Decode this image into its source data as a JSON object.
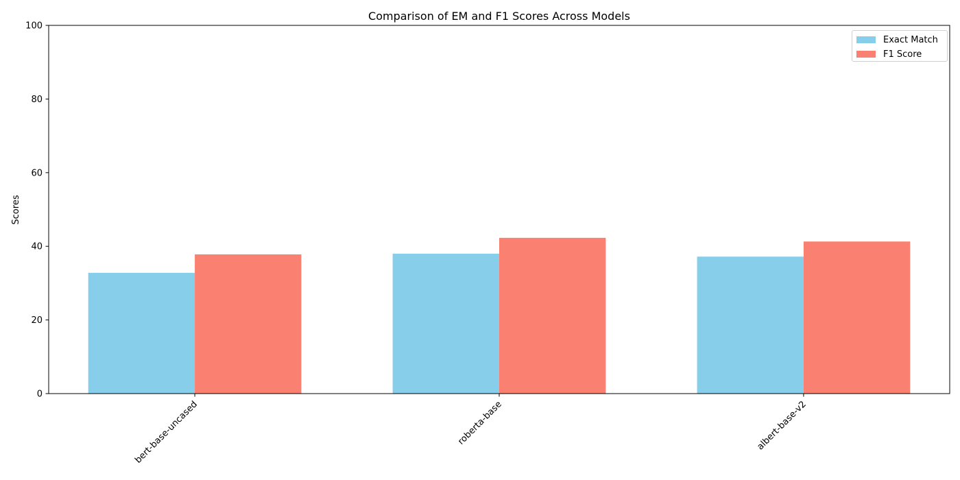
{
  "chart_data": {
    "type": "bar",
    "title": "Comparison of EM and F1 Scores Across Models",
    "xlabel": "",
    "ylabel": "Scores",
    "categories": [
      "bert-base-uncased",
      "roberta-base",
      "albert-base-v2"
    ],
    "series": [
      {
        "name": "Exact Match",
        "color": "#87CEEB",
        "values": [
          32.8,
          38.0,
          37.2
        ]
      },
      {
        "name": "F1 Score",
        "color": "#FA8072",
        "values": [
          37.8,
          42.3,
          41.3
        ]
      }
    ],
    "ylim": [
      0,
      100
    ],
    "yticks": [
      "0",
      "20",
      "40",
      "60",
      "80",
      "100"
    ],
    "grid": false,
    "legend_position": "top-right"
  }
}
